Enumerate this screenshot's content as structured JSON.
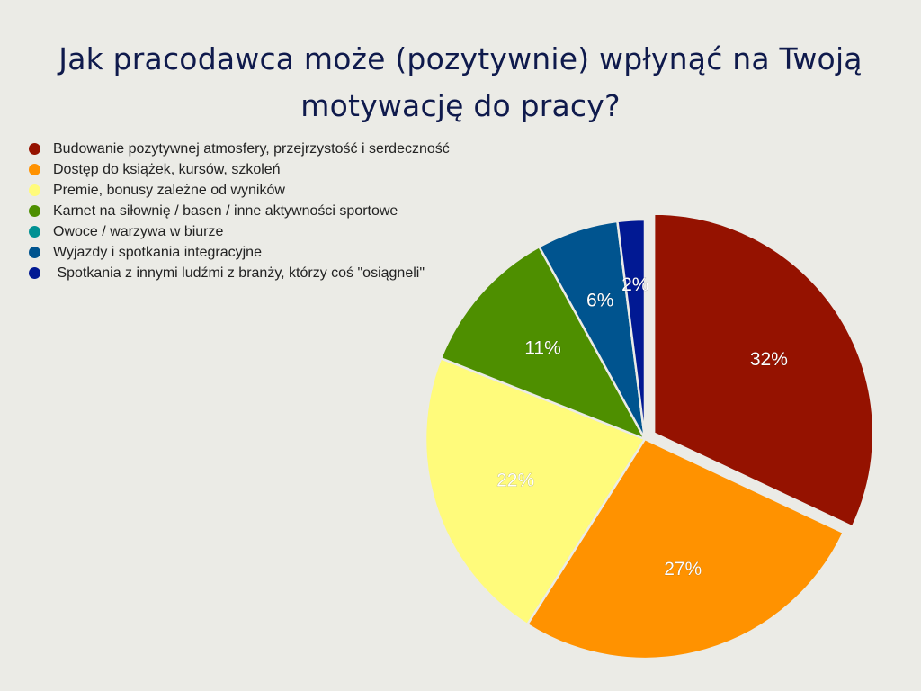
{
  "title": {
    "line1": "Jak pracodawca może (pozytywnie) wpłynąć na Twoją",
    "line2": "motywację do pracy?"
  },
  "legend": [
    {
      "label": "Budowanie pozytywnej atmosfery, przejrzystość i serdeczność",
      "color": "#951200"
    },
    {
      "label": "Dostęp do książek, kursów, szkoleń",
      "color": "#ff9200"
    },
    {
      "label": "Premie, bonusy zależne od wyników",
      "color": "#fffb7b"
    },
    {
      "label": "Karnet na siłownię / basen / inne aktywności sportowe",
      "color": "#4e8f00"
    },
    {
      "label": "Owoce / warzywa w biurze",
      "color": "#009193"
    },
    {
      "label": "Wyjazdy i spotkania integracyjne",
      "color": "#00548f"
    },
    {
      "label": " Spotkania z innymi ludźmi z branży, którzy coś \"osiągneli\"",
      "color": "#011993"
    }
  ],
  "chart_data": {
    "type": "pie",
    "title": "Jak pracodawca może (pozytywnie) wpłynąć na Twoją motywację do pracy?",
    "legend_position": "top-left",
    "slices": [
      {
        "label": "Budowanie pozytywnej atmosfery, przejrzystość i serdeczność",
        "value": 32,
        "display": "32%",
        "color": "#951200",
        "exploded": true
      },
      {
        "label": "Dostęp do książek, kursów, szkoleń",
        "value": 27,
        "display": "27%",
        "color": "#ff9200"
      },
      {
        "label": "Premie, bonusy zależne od wyników",
        "value": 22,
        "display": "22%",
        "color": "#fffb7b"
      },
      {
        "label": "Karnet na siłownię / basen / inne aktywności sportowe",
        "value": 11,
        "display": "11%",
        "color": "#4e8f00"
      },
      {
        "label": "Owoce / warzywa w biurze",
        "value": 0,
        "display": "",
        "color": "#009193"
      },
      {
        "label": "Wyjazdy i spotkania integracyjne",
        "value": 6,
        "display": "6%",
        "color": "#00548f"
      },
      {
        "label": " Spotkania z innymi ludźmi z branży, którzy coś \"osiągneli\"",
        "value": 2,
        "display": "2%",
        "color": "#011993"
      }
    ]
  }
}
